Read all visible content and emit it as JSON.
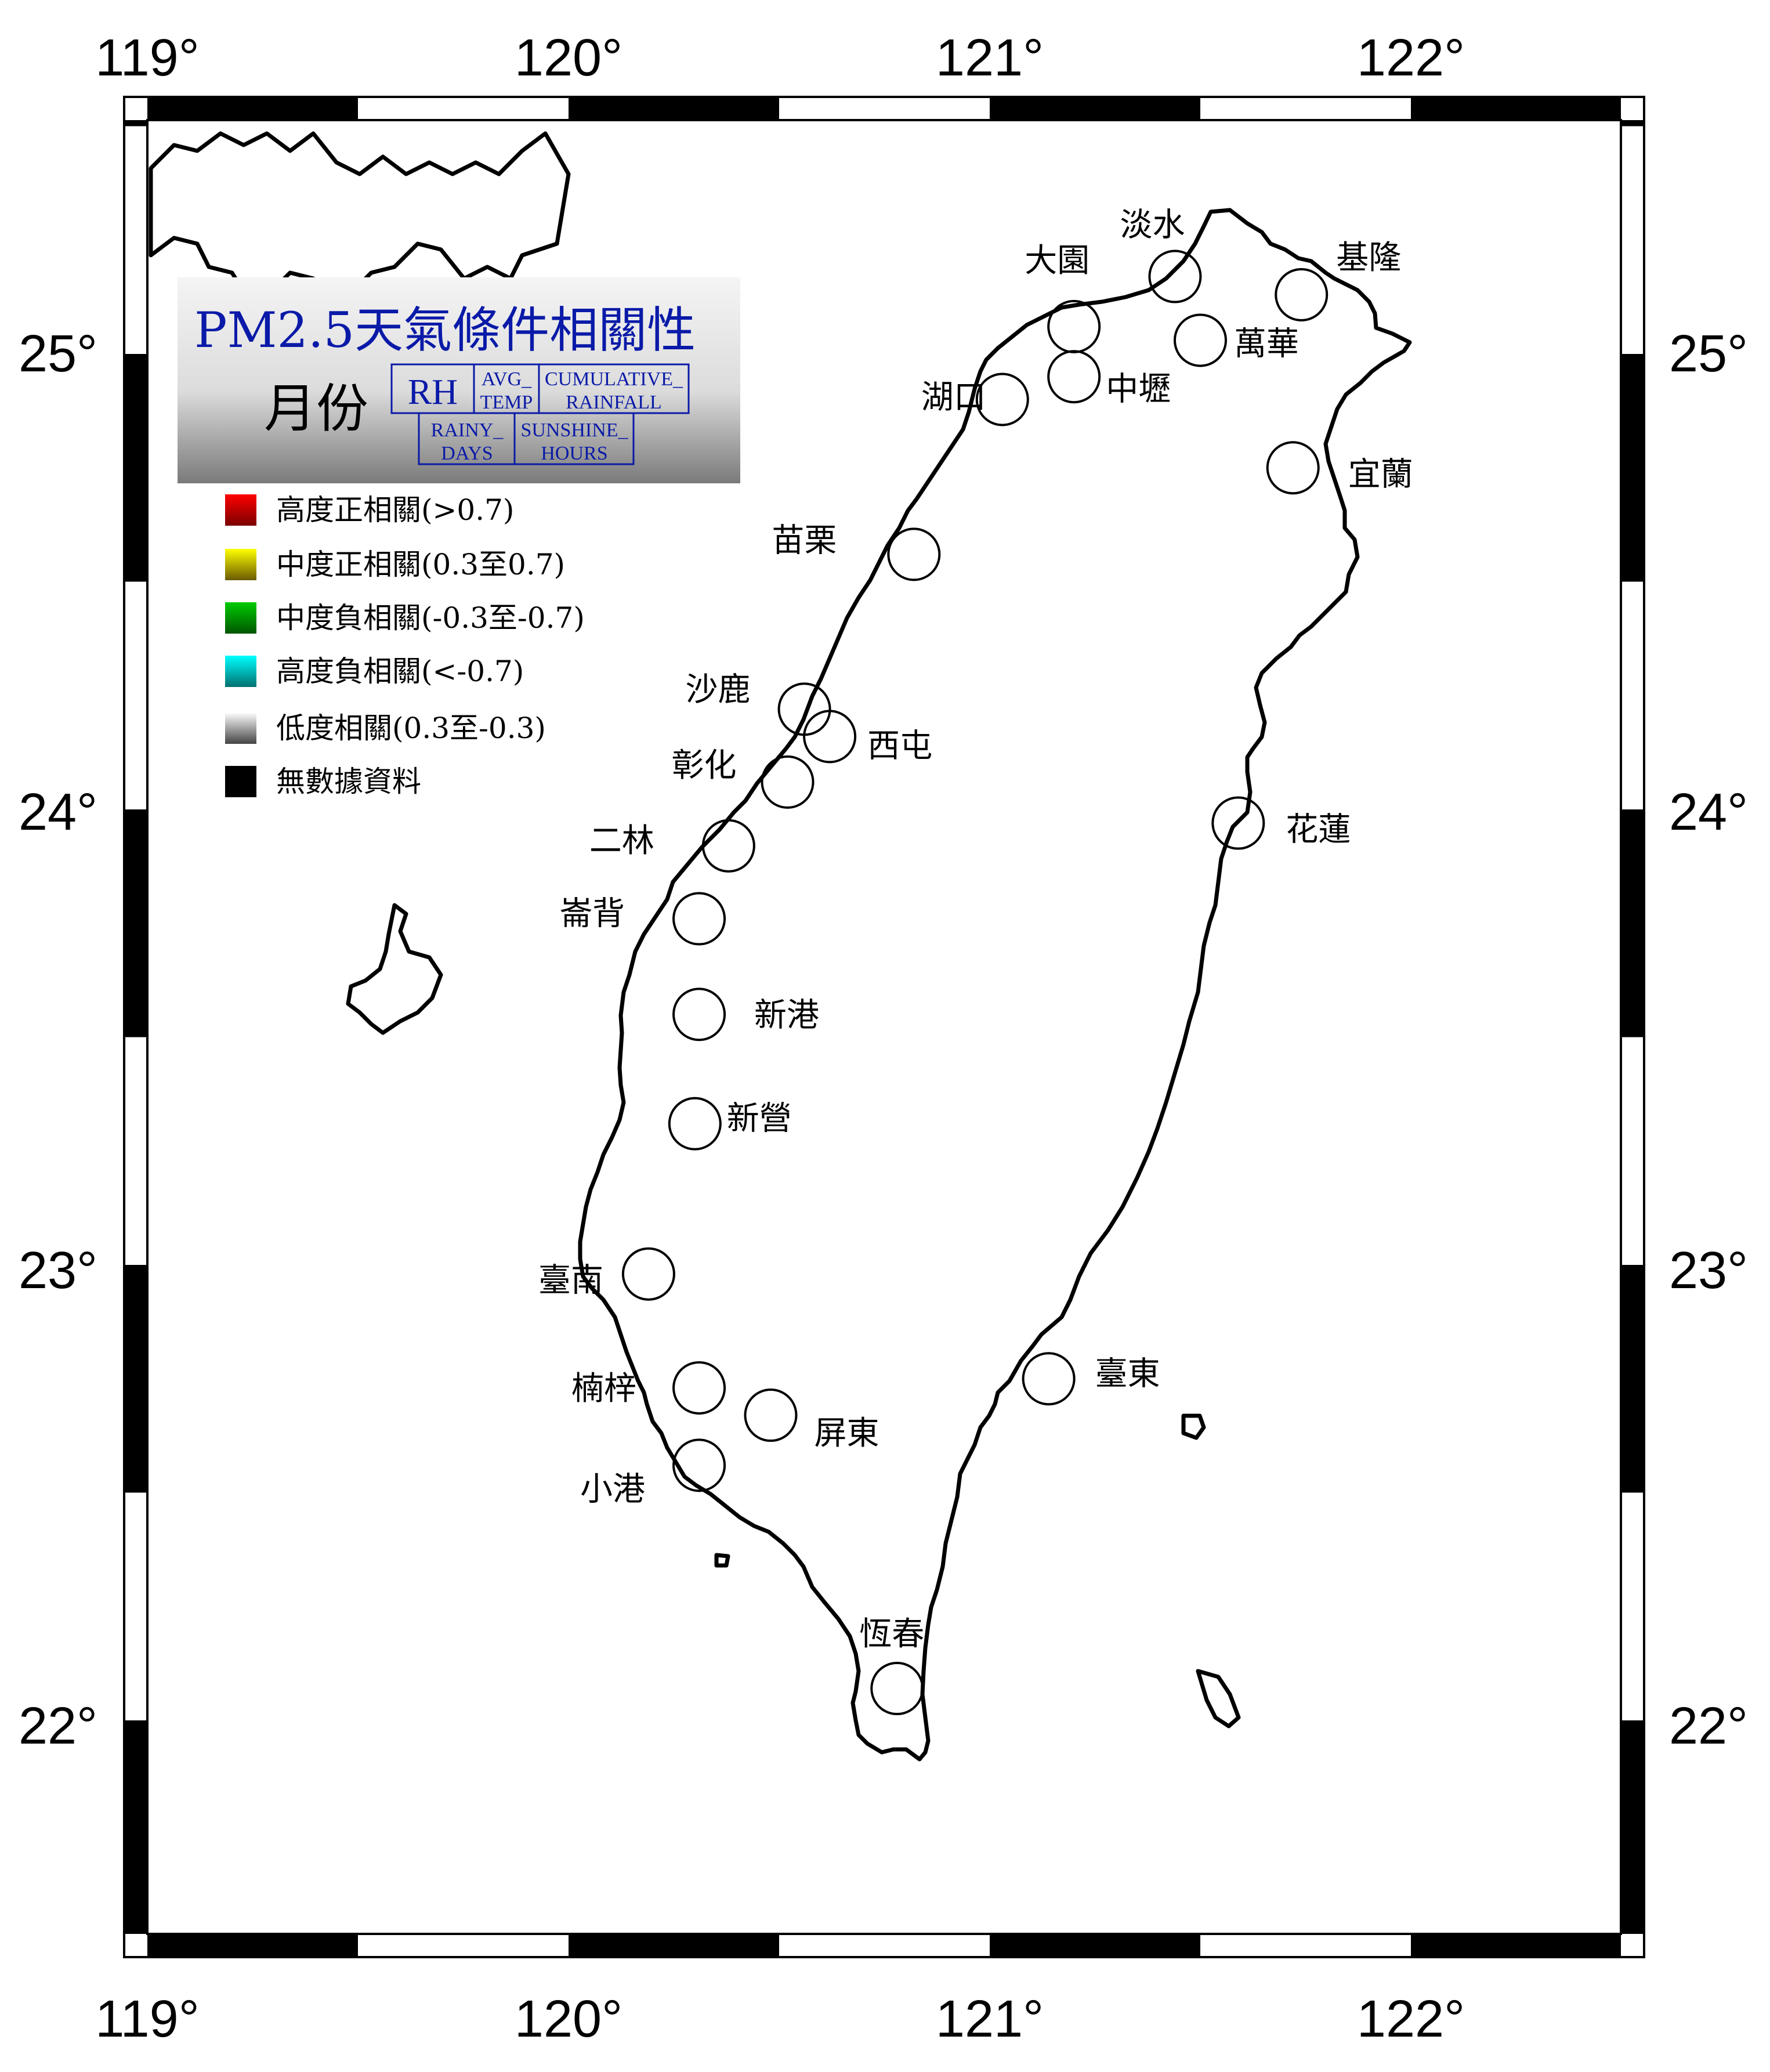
{
  "title": "PM2.5天氣條件相關性",
  "panel": {
    "month_label": "月份",
    "boxes": [
      "RH",
      "AVG_",
      "TEMP",
      "CUMULATIVE_",
      "RAINFALL",
      "RAINY_",
      "DAYS",
      "SUNSHINE_",
      "HOURS"
    ]
  },
  "legend": [
    {
      "label": "高度正相關(>0.7)",
      "color": "#ff0000"
    },
    {
      "label": "中度正相關(0.3至0.7)",
      "color": "#ffff00"
    },
    {
      "label": "中度負相關(-0.3至-0.7)",
      "color": "#00cc00"
    },
    {
      "label": "高度負相關(<-0.7)",
      "color": "#00ffff"
    },
    {
      "label": "低度相關(0.3至-0.3)",
      "color": "#ffffff"
    },
    {
      "label": "無數據資料",
      "color": "#000000"
    }
  ],
  "axes": {
    "lon_ticks": [
      "119°",
      "120°",
      "121°",
      "122°"
    ],
    "lat_ticks": [
      "25°",
      "24°",
      "23°",
      "22°"
    ]
  },
  "stations": [
    {
      "name": "淡水",
      "lon": 121.44,
      "lat": 25.17
    },
    {
      "name": "基隆",
      "lon": 121.74,
      "lat": 25.13
    },
    {
      "name": "大園",
      "lon": 121.2,
      "lat": 25.06
    },
    {
      "name": "萬華",
      "lon": 121.5,
      "lat": 25.03
    },
    {
      "name": "中壢",
      "lon": 121.2,
      "lat": 24.95
    },
    {
      "name": "湖口",
      "lon": 121.03,
      "lat": 24.9
    },
    {
      "name": "宜蘭",
      "lon": 121.72,
      "lat": 24.75
    },
    {
      "name": "苗栗",
      "lon": 120.82,
      "lat": 24.56
    },
    {
      "name": "沙鹿",
      "lon": 120.56,
      "lat": 24.22
    },
    {
      "name": "西屯",
      "lon": 120.62,
      "lat": 24.16
    },
    {
      "name": "彰化",
      "lon": 120.52,
      "lat": 24.06
    },
    {
      "name": "花蓮",
      "lon": 121.59,
      "lat": 23.97
    },
    {
      "name": "二林",
      "lon": 120.38,
      "lat": 23.92
    },
    {
      "name": "崙背",
      "lon": 120.31,
      "lat": 23.76
    },
    {
      "name": "新港",
      "lon": 120.31,
      "lat": 23.55
    },
    {
      "name": "新營",
      "lon": 120.3,
      "lat": 23.31
    },
    {
      "name": "臺南",
      "lon": 120.19,
      "lat": 22.98
    },
    {
      "name": "楠梓",
      "lon": 120.31,
      "lat": 22.73
    },
    {
      "name": "臺東",
      "lon": 121.14,
      "lat": 22.75
    },
    {
      "name": "屏東",
      "lon": 120.48,
      "lat": 22.67
    },
    {
      "name": "小港",
      "lon": 120.31,
      "lat": 22.56
    },
    {
      "name": "恆春",
      "lon": 120.78,
      "lat": 22.07
    }
  ]
}
